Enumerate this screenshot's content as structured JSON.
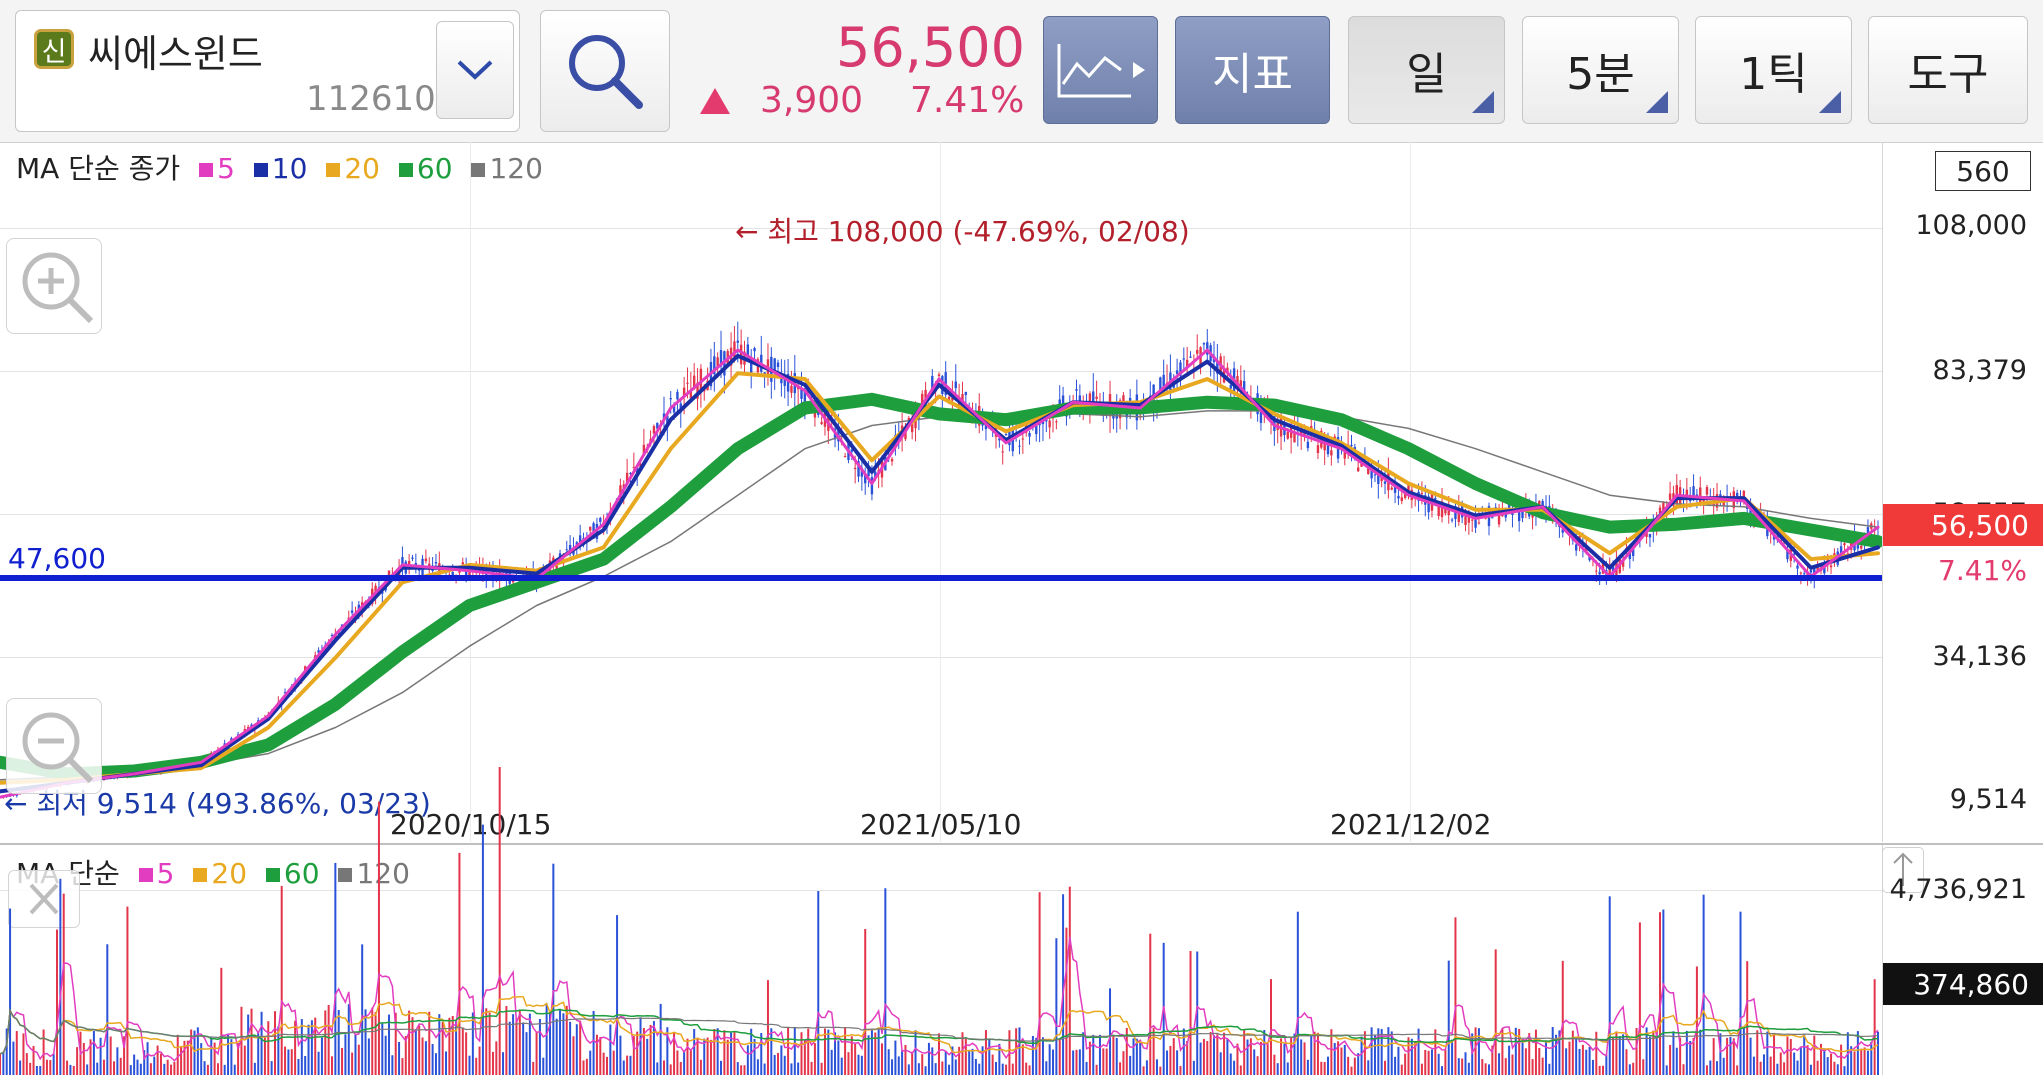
{
  "header": {
    "badge": "신",
    "stock_name": "씨에스윈드",
    "stock_code": "112610",
    "price": "56,500",
    "change_value": "3,900",
    "change_pct": "7.41%",
    "buttons": {
      "indicator": "지표",
      "period": "일",
      "interval": "5분",
      "tick": "1틱",
      "tools": "도구"
    }
  },
  "colors": {
    "up": "#d63a6f",
    "ma5": "#e23dc0",
    "ma10": "#1a2fa6",
    "ma20": "#e8a820",
    "ma60": "#1f9e3e",
    "ma120": "#777777",
    "support_line": "#1020d0"
  },
  "price_chart": {
    "legend": {
      "prefix": "MA 단순 종가",
      "ma5": "5",
      "ma10": "10",
      "ma20": "20",
      "ma60": "60",
      "ma120": "120"
    },
    "count_box": "560",
    "y_axis": [
      "108,000",
      "83,379",
      "58,757",
      "34,136",
      "9,514"
    ],
    "high_annotation": "← 최고 108,000 (-47.69%, 02/08)",
    "low_annotation": "← 최저 9,514 (493.86%, 03/23)",
    "support_label": "47,600",
    "current_price_tag": "56,500",
    "current_pct": "7.41%",
    "dates": [
      "2020/10/15",
      "2021/05/10",
      "2021/12/02"
    ]
  },
  "volume_chart": {
    "legend": {
      "prefix": "MA 단순",
      "ma5": "5",
      "ma20": "20",
      "ma60": "60",
      "ma120": "120"
    },
    "y_top": "4,736,921",
    "current_volume": "374,860"
  },
  "chart_data": {
    "type": "line",
    "title": "",
    "ylabel": "",
    "xlabel": "",
    "ylim": [
      9514,
      108000
    ],
    "x_ticks": [
      "2020/10/15",
      "2021/05/10",
      "2021/12/02"
    ],
    "annotations": {
      "high": {
        "value": 108000,
        "date": "02/08"
      },
      "low": {
        "value": 9514,
        "date": "03/23"
      },
      "support": 47600,
      "last": 56500
    },
    "x": [
      0,
      20,
      40,
      60,
      80,
      100,
      120,
      140,
      160,
      180,
      200,
      220,
      240,
      260,
      280,
      300,
      320,
      340,
      360,
      380,
      400,
      420,
      440,
      460,
      480,
      500,
      520,
      540,
      560
    ],
    "series": [
      {
        "name": "5",
        "values": [
          10000,
          12500,
          14000,
          16000,
          24000,
          38000,
          50000,
          49000,
          47600,
          57000,
          77000,
          87000,
          80000,
          64000,
          82000,
          71000,
          78000,
          77000,
          87000,
          74000,
          70000,
          62000,
          58000,
          60000,
          48000,
          62000,
          61000,
          48000,
          56500
        ]
      },
      {
        "name": "10",
        "values": [
          11000,
          12500,
          14000,
          15500,
          23500,
          37000,
          49500,
          49500,
          48500,
          56000,
          75000,
          86000,
          81000,
          66000,
          81000,
          71500,
          78000,
          77500,
          85000,
          75000,
          70500,
          62500,
          58500,
          60000,
          49500,
          61500,
          61500,
          49500,
          53000
        ]
      },
      {
        "name": "20",
        "values": [
          12500,
          13000,
          14000,
          15000,
          22000,
          34000,
          47000,
          50000,
          49000,
          53000,
          70000,
          83000,
          82000,
          68000,
          79000,
          73000,
          77500,
          78000,
          82000,
          76000,
          71000,
          64000,
          59500,
          59500,
          52000,
          60000,
          61500,
          51000,
          52000
        ]
      },
      {
        "name": "60",
        "values": [
          16000,
          14000,
          14500,
          16000,
          19000,
          26000,
          35000,
          43000,
          47000,
          51000,
          60000,
          70000,
          77000,
          78500,
          76000,
          75000,
          77000,
          77000,
          78000,
          77500,
          75000,
          70000,
          64000,
          59000,
          56500,
          57000,
          58000,
          56000,
          54000
        ]
      },
      {
        "name": "120",
        "values": [
          13000,
          13500,
          14500,
          15500,
          17500,
          22000,
          28000,
          36000,
          43000,
          48000,
          54000,
          62000,
          70000,
          74000,
          75500,
          75500,
          76000,
          75500,
          76500,
          76500,
          75500,
          73500,
          70000,
          66000,
          62000,
          60500,
          60000,
          58000,
          56500
        ]
      }
    ]
  }
}
